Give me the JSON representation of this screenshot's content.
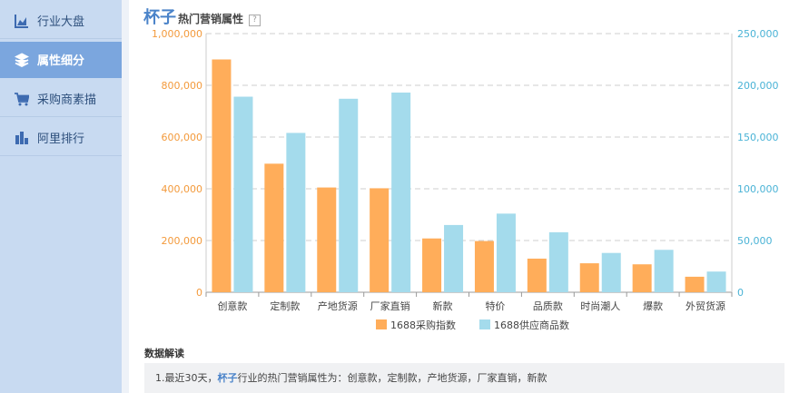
{
  "sidebar": {
    "items": [
      {
        "label": "行业大盘",
        "icon": "area-chart-icon",
        "active": false
      },
      {
        "label": "属性细分",
        "icon": "layers-icon",
        "active": true
      },
      {
        "label": "采购商素描",
        "icon": "cart-icon",
        "active": false
      },
      {
        "label": "阿里排行",
        "icon": "bar-chart-icon",
        "active": false
      }
    ]
  },
  "header": {
    "keyword": "杯子",
    "subtitle": "热门营销属性",
    "help_glyph": "?"
  },
  "chart_data": {
    "type": "bar",
    "categories": [
      "创意款",
      "定制款",
      "产地货源",
      "厂家直销",
      "新款",
      "特价",
      "品质款",
      "时尚潮人",
      "爆款",
      "外贸货源"
    ],
    "series": [
      {
        "name": "1688采购指数",
        "axis": "left",
        "color": "#ffad5a",
        "values": [
          900000,
          497000,
          405000,
          402000,
          208000,
          198000,
          130000,
          112000,
          108000,
          60000
        ]
      },
      {
        "name": "1688供应商品数",
        "axis": "right",
        "color": "#a4dbec",
        "values": [
          189000,
          154000,
          187000,
          193000,
          65000,
          76000,
          58000,
          38000,
          41000,
          20000
        ]
      }
    ],
    "left_axis": {
      "min": 0,
      "max": 1000000,
      "ticks": [
        "0",
        "200,000",
        "400,000",
        "600,000",
        "800,000",
        "1,000,000"
      ],
      "color": "#f39a3c"
    },
    "right_axis": {
      "min": 0,
      "max": 250000,
      "ticks": [
        "0",
        "50,000",
        "100,000",
        "150,000",
        "200,000",
        "250,000"
      ],
      "color": "#4ab3d6"
    },
    "grid": true,
    "legend_position": "bottom"
  },
  "insight": {
    "section_title": "数据解读",
    "prefix": "1.最近30天，",
    "keyword": "杯子",
    "text": "行业的热门营销属性为：创意款，定制款，产地货源，厂家直销，新款"
  }
}
